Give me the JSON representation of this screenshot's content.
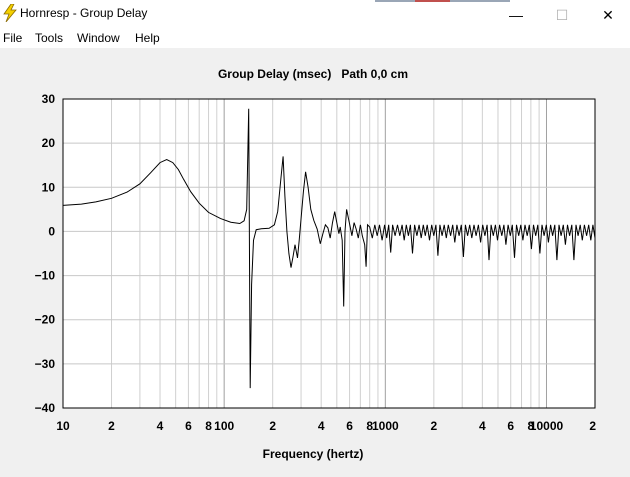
{
  "window": {
    "title": "Hornresp - Group Delay",
    "minimize_glyph": "—",
    "maximize_glyph": "☐",
    "close_glyph": "✕",
    "icon": "lightning-bolt-icon"
  },
  "menu": [
    "File",
    "Tools",
    "Window",
    "Help"
  ],
  "chart_data": {
    "type": "line",
    "title": "Group Delay (msec)   Path 0,0 cm",
    "xlabel": "Frequency (hertz)",
    "ylabel": "",
    "xscale": "log",
    "xlim": [
      10,
      20000
    ],
    "ylim": [
      -40,
      30
    ],
    "grid": true,
    "line_color": "#000000",
    "y_ticks": [
      "30",
      "20",
      "10",
      "0",
      "−10",
      "−20",
      "−30",
      "−40"
    ],
    "x_ticks": [
      {
        "v": 10,
        "label": "10"
      },
      {
        "v": 20,
        "label": "2"
      },
      {
        "v": 40,
        "label": "4"
      },
      {
        "v": 60,
        "label": "6"
      },
      {
        "v": 80,
        "label": "8"
      },
      {
        "v": 100,
        "label": "100"
      },
      {
        "v": 200,
        "label": "2"
      },
      {
        "v": 400,
        "label": "4"
      },
      {
        "v": 600,
        "label": "6"
      },
      {
        "v": 800,
        "label": "8"
      },
      {
        "v": 1000,
        "label": "1000"
      },
      {
        "v": 2000,
        "label": "2"
      },
      {
        "v": 4000,
        "label": "4"
      },
      {
        "v": 6000,
        "label": "6"
      },
      {
        "v": 8000,
        "label": "8"
      },
      {
        "v": 10000,
        "label": "10000"
      },
      {
        "v": 20000,
        "label": "2"
      }
    ],
    "series": [
      {
        "points": [
          [
            10,
            5.9
          ],
          [
            13,
            6.2
          ],
          [
            16,
            6.7
          ],
          [
            20,
            7.5
          ],
          [
            25,
            8.9
          ],
          [
            30,
            10.8
          ],
          [
            35,
            13.3
          ],
          [
            40,
            15.6
          ],
          [
            44,
            16.3
          ],
          [
            48,
            15.6
          ],
          [
            52,
            14.0
          ],
          [
            56,
            11.8
          ],
          [
            62,
            9.0
          ],
          [
            70,
            6.4
          ],
          [
            80,
            4.3
          ],
          [
            95,
            2.9
          ],
          [
            110,
            2.1
          ],
          [
            125,
            1.8
          ],
          [
            133,
            2.4
          ],
          [
            138,
            5.0
          ],
          [
            142,
            27.8
          ],
          [
            145,
            -35.5
          ],
          [
            148,
            -12.0
          ],
          [
            152,
            -2.0
          ],
          [
            158,
            0.4
          ],
          [
            170,
            0.6
          ],
          [
            190,
            0.7
          ],
          [
            205,
            1.5
          ],
          [
            215,
            4.5
          ],
          [
            225,
            12.0
          ],
          [
            232,
            17.0
          ],
          [
            238,
            8.0
          ],
          [
            245,
            0.0
          ],
          [
            252,
            -5.0
          ],
          [
            260,
            -8.2
          ],
          [
            268,
            -5.5
          ],
          [
            275,
            -3.0
          ],
          [
            285,
            -6.0
          ],
          [
            292,
            -2.0
          ],
          [
            300,
            3.0
          ],
          [
            310,
            9.0
          ],
          [
            320,
            13.5
          ],
          [
            332,
            10.0
          ],
          [
            345,
            5.0
          ],
          [
            360,
            2.5
          ],
          [
            378,
            0.5
          ],
          [
            395,
            -2.8
          ],
          [
            410,
            -0.5
          ],
          [
            425,
            1.5
          ],
          [
            440,
            0.8
          ],
          [
            455,
            -1.5
          ],
          [
            470,
            2.0
          ],
          [
            485,
            4.5
          ],
          [
            500,
            2.0
          ],
          [
            515,
            -0.5
          ],
          [
            525,
            1.0
          ],
          [
            540,
            -2.0
          ],
          [
            552,
            -17.0
          ],
          [
            562,
            0.0
          ],
          [
            575,
            5.0
          ],
          [
            590,
            3.0
          ],
          [
            605,
            1.0
          ],
          [
            620,
            -1.0
          ],
          [
            640,
            2.0
          ],
          [
            660,
            0.5
          ],
          [
            680,
            -1.5
          ],
          [
            700,
            1.5
          ],
          [
            720,
            -1.0
          ],
          [
            745,
            -3.0
          ],
          [
            760,
            -8.0
          ],
          [
            775,
            1.5
          ],
          [
            800,
            1.0
          ],
          [
            830,
            -1.5
          ],
          [
            860,
            1.5
          ],
          [
            890,
            -1.0
          ],
          [
            920,
            1.5
          ],
          [
            955,
            -2.0
          ],
          [
            990,
            1.5
          ],
          [
            1020,
            -1.5
          ],
          [
            1050,
            1.5
          ],
          [
            1080,
            -4.8
          ],
          [
            1110,
            1.5
          ],
          [
            1150,
            -1.0
          ],
          [
            1190,
            1.5
          ],
          [
            1230,
            -1.0
          ],
          [
            1270,
            1.5
          ],
          [
            1310,
            -2.0
          ],
          [
            1350,
            1.5
          ],
          [
            1390,
            -1.0
          ],
          [
            1430,
            1.5
          ],
          [
            1475,
            -5.0
          ],
          [
            1520,
            1.5
          ],
          [
            1570,
            -1.0
          ],
          [
            1620,
            1.5
          ],
          [
            1670,
            -1.5
          ],
          [
            1720,
            1.5
          ],
          [
            1770,
            -1.0
          ],
          [
            1820,
            1.5
          ],
          [
            1880,
            -2.0
          ],
          [
            1940,
            1.5
          ],
          [
            2000,
            -1.0
          ],
          [
            2060,
            1.5
          ],
          [
            2120,
            -5.5
          ],
          [
            2180,
            1.5
          ],
          [
            2250,
            -1.0
          ],
          [
            2320,
            1.5
          ],
          [
            2390,
            -1.5
          ],
          [
            2460,
            1.5
          ],
          [
            2540,
            -1.0
          ],
          [
            2620,
            1.5
          ],
          [
            2700,
            -2.5
          ],
          [
            2780,
            1.5
          ],
          [
            2870,
            -1.0
          ],
          [
            2960,
            1.5
          ],
          [
            3050,
            -5.8
          ],
          [
            3140,
            1.5
          ],
          [
            3240,
            -1.0
          ],
          [
            3340,
            1.5
          ],
          [
            3440,
            -1.5
          ],
          [
            3550,
            1.5
          ],
          [
            3660,
            -1.0
          ],
          [
            3780,
            1.5
          ],
          [
            3900,
            -2.5
          ],
          [
            4020,
            1.5
          ],
          [
            4150,
            -1.0
          ],
          [
            4280,
            1.5
          ],
          [
            4400,
            -6.5
          ],
          [
            4530,
            1.5
          ],
          [
            4680,
            -1.0
          ],
          [
            4820,
            1.5
          ],
          [
            4970,
            -2.0
          ],
          [
            5120,
            1.5
          ],
          [
            5280,
            -1.0
          ],
          [
            5440,
            1.5
          ],
          [
            5600,
            -3.0
          ],
          [
            5780,
            1.5
          ],
          [
            5960,
            -1.0
          ],
          [
            6140,
            1.5
          ],
          [
            6330,
            -6.0
          ],
          [
            6520,
            1.5
          ],
          [
            6720,
            -1.0
          ],
          [
            6930,
            1.5
          ],
          [
            7140,
            -2.0
          ],
          [
            7360,
            1.5
          ],
          [
            7590,
            -1.0
          ],
          [
            7820,
            1.5
          ],
          [
            8060,
            -4.0
          ],
          [
            8310,
            1.5
          ],
          [
            8570,
            -1.0
          ],
          [
            8830,
            1.5
          ],
          [
            9100,
            -5.0
          ],
          [
            9380,
            1.5
          ],
          [
            9670,
            -1.0
          ],
          [
            9970,
            1.5
          ],
          [
            10280,
            -2.5
          ],
          [
            10600,
            1.5
          ],
          [
            10920,
            -1.0
          ],
          [
            11260,
            1.5
          ],
          [
            11600,
            -6.5
          ],
          [
            11960,
            1.5
          ],
          [
            12330,
            -1.0
          ],
          [
            12710,
            1.5
          ],
          [
            13100,
            -3.0
          ],
          [
            13500,
            1.5
          ],
          [
            13920,
            -1.0
          ],
          [
            14350,
            1.5
          ],
          [
            14790,
            -6.5
          ],
          [
            15240,
            1.5
          ],
          [
            15710,
            -1.0
          ],
          [
            16190,
            1.5
          ],
          [
            16690,
            -2.0
          ],
          [
            17200,
            1.5
          ],
          [
            17730,
            -1.0
          ],
          [
            18280,
            1.5
          ],
          [
            18840,
            -2.0
          ],
          [
            19420,
            1.5
          ],
          [
            20000,
            -1.5
          ]
        ]
      }
    ]
  }
}
